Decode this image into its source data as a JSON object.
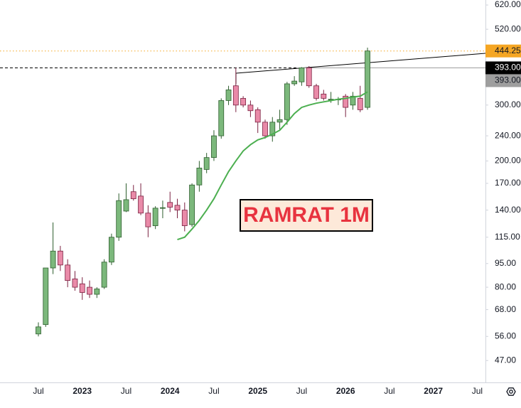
{
  "chart_data": {
    "type": "candlestick",
    "title": "RAMRAT 1M",
    "categories": [
      "Jul",
      null,
      null,
      null,
      null,
      null,
      "2023",
      null,
      null,
      null,
      null,
      null,
      "Jul",
      null,
      null,
      null,
      null,
      null,
      "2024",
      null,
      null,
      null,
      null,
      null,
      "Jul",
      null,
      null,
      null,
      null,
      null,
      "2025",
      null,
      null,
      null,
      null,
      null,
      "Jul",
      null,
      null,
      null,
      null,
      null,
      "2026",
      null,
      null,
      null,
      null,
      null,
      "Jul",
      null,
      null,
      null,
      null,
      null,
      "2027",
      null,
      null,
      null,
      null,
      null,
      "Jul",
      null
    ],
    "open": [
      57,
      61,
      92,
      104,
      94,
      85,
      82,
      80,
      76,
      80,
      96,
      115,
      139,
      160,
      155,
      137,
      125,
      142,
      148,
      145,
      140,
      126,
      168,
      188,
      205,
      240,
      310,
      345,
      315,
      300,
      290,
      265,
      240,
      265,
      270,
      350,
      355,
      393,
      345,
      325,
      312,
      312,
      320,
      300,
      315,
      295,
      null,
      null,
      null,
      null,
      null,
      null,
      null,
      null,
      null,
      null,
      null,
      null,
      null,
      null,
      null,
      null
    ],
    "high": [
      62,
      92,
      128,
      108,
      98,
      90,
      86,
      84,
      80,
      98,
      118,
      158,
      170,
      168,
      170,
      145,
      144,
      150,
      160,
      152,
      148,
      170,
      200,
      212,
      250,
      315,
      345,
      393,
      320,
      310,
      295,
      270,
      275,
      290,
      355,
      370,
      395,
      398,
      350,
      335,
      330,
      318,
      325,
      330,
      345,
      455,
      null,
      null,
      null,
      null,
      null,
      null,
      null,
      null,
      null,
      null,
      null,
      null,
      null,
      null,
      null,
      null
    ],
    "low": [
      56,
      60,
      88,
      90,
      80,
      78,
      73,
      74,
      74,
      79,
      94,
      112,
      138,
      150,
      135,
      115,
      122,
      132,
      138,
      132,
      120,
      124,
      160,
      183,
      200,
      235,
      300,
      285,
      295,
      275,
      245,
      235,
      230,
      250,
      260,
      345,
      345,
      340,
      310,
      310,
      305,
      300,
      275,
      290,
      285,
      290,
      null,
      null,
      null,
      null,
      null,
      null,
      null,
      null,
      null,
      null,
      null,
      null,
      null,
      null,
      null,
      null
    ],
    "close": [
      60,
      92,
      104,
      94,
      84,
      80,
      77,
      76,
      79,
      96,
      115,
      150,
      151,
      152,
      137,
      124,
      142,
      142.5,
      143,
      140,
      125,
      168,
      190,
      205,
      240,
      310,
      335,
      300,
      300,
      288,
      265,
      240,
      265,
      270,
      350,
      357,
      393,
      345,
      315,
      315,
      313,
      313,
      295,
      320,
      290,
      444.25,
      null,
      null,
      null,
      null,
      null,
      null,
      null,
      null,
      null,
      null,
      null,
      null,
      null,
      null,
      null,
      null
    ],
    "up_color": "#7cb87c",
    "down_color": "#e98aa8",
    "moving_average": {
      "color": "#4caf50",
      "values": [
        null,
        null,
        null,
        null,
        null,
        null,
        null,
        null,
        null,
        null,
        null,
        null,
        null,
        null,
        null,
        null,
        null,
        null,
        null,
        113,
        115,
        122,
        130,
        140,
        152,
        168,
        185,
        200,
        215,
        225,
        233,
        237,
        243,
        250,
        265,
        282,
        295,
        300,
        304,
        307,
        310,
        313,
        315,
        318,
        320,
        330,
        null,
        null,
        null,
        null,
        null,
        null,
        null,
        null,
        null,
        null,
        null,
        null,
        null,
        null,
        null,
        null
      ]
    },
    "ylog": true,
    "ylim": [
      40.1,
      643
    ],
    "yticks": [
      {
        "value": 620,
        "label": "620.00"
      },
      {
        "value": 520,
        "label": "520.00"
      },
      {
        "value": 300,
        "label": "300.00"
      },
      {
        "value": 240,
        "label": "240.00"
      },
      {
        "value": 200,
        "label": "200.00"
      },
      {
        "value": 170,
        "label": "170.00"
      },
      {
        "value": 140,
        "label": "140.00"
      },
      {
        "value": 115,
        "label": "115.00"
      },
      {
        "value": 95,
        "label": "95.00"
      },
      {
        "value": 80,
        "label": "80.00"
      },
      {
        "value": 68,
        "label": "68.00"
      },
      {
        "value": 56,
        "label": "56.00"
      },
      {
        "value": 47,
        "label": "47.00"
      }
    ],
    "price_lines": [
      {
        "value": 444.25,
        "color": "#f5a623",
        "style": "dotted"
      },
      {
        "value": 393,
        "label": "393.00",
        "color": "#000000",
        "style": "dashed"
      },
      {
        "value": 393,
        "label": "393.00",
        "color": "#9e9e9e",
        "style": "solid"
      }
    ]
  }
}
